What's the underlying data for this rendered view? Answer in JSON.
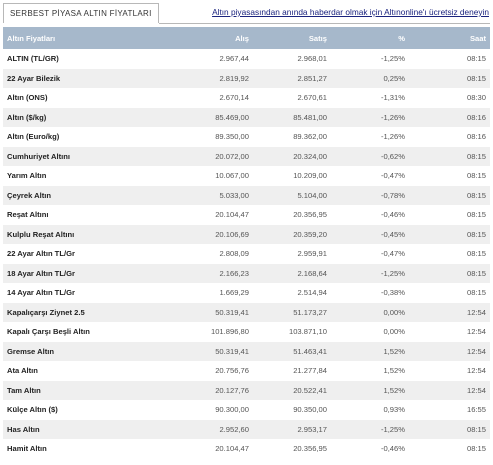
{
  "tab": {
    "title": "SERBEST PİYASA ALTIN FİYATLARI"
  },
  "promo": {
    "link": "Altın piyasasından anında haberdar olmak için Altınonline'ı ücretsiz deneyin"
  },
  "table": {
    "columns": [
      "Altın Fiyatları",
      "Alış",
      "Satış",
      "%",
      "Saat"
    ],
    "rows": [
      [
        "ALTIN (TL/GR)",
        "2.967,44",
        "2.968,01",
        "-1,25%",
        "08:15"
      ],
      [
        "22 Ayar Bilezik",
        "2.819,92",
        "2.851,27",
        "0,25%",
        "08:15"
      ],
      [
        "Altın (ONS)",
        "2.670,14",
        "2.670,61",
        "-1,31%",
        "08:30"
      ],
      [
        "Altın ($/kg)",
        "85.469,00",
        "85.481,00",
        "-1,26%",
        "08:16"
      ],
      [
        "Altın (Euro/kg)",
        "89.350,00",
        "89.362,00",
        "-1,26%",
        "08:16"
      ],
      [
        "Cumhuriyet Altını",
        "20.072,00",
        "20.324,00",
        "-0,62%",
        "08:15"
      ],
      [
        "Yarım Altın",
        "10.067,00",
        "10.209,00",
        "-0,47%",
        "08:15"
      ],
      [
        "Çeyrek Altın",
        "5.033,00",
        "5.104,00",
        "-0,78%",
        "08:15"
      ],
      [
        "Reşat Altını",
        "20.104,47",
        "20.356,95",
        "-0,46%",
        "08:15"
      ],
      [
        "Kulplu Reşat Altını",
        "20.106,69",
        "20.359,20",
        "-0,45%",
        "08:15"
      ],
      [
        "22 Ayar Altın TL/Gr",
        "2.808,09",
        "2.959,91",
        "-0,47%",
        "08:15"
      ],
      [
        "18 Ayar Altın TL/Gr",
        "2.166,23",
        "2.168,64",
        "-1,25%",
        "08:15"
      ],
      [
        "14 Ayar Altın TL/Gr",
        "1.669,29",
        "2.514,94",
        "-0,38%",
        "08:15"
      ],
      [
        "Kapalıçarşı Ziynet 2.5",
        "50.319,41",
        "51.173,27",
        "0,00%",
        "12:54"
      ],
      [
        "Kapalı Çarşı Beşli Altın",
        "101.896,80",
        "103.871,10",
        "0,00%",
        "12:54"
      ],
      [
        "Gremse Altın",
        "50.319,41",
        "51.463,41",
        "1,52%",
        "12:54"
      ],
      [
        "Ata Altın",
        "20.756,76",
        "21.277,84",
        "1,52%",
        "12:54"
      ],
      [
        "Tam Altın",
        "20.127,76",
        "20.522,41",
        "1,52%",
        "12:54"
      ],
      [
        "Külçe Altın ($)",
        "90.300,00",
        "90.350,00",
        "0,93%",
        "16:55"
      ],
      [
        "Has Altın",
        "2.952,60",
        "2.953,17",
        "-1,25%",
        "08:15"
      ],
      [
        "Hamit Altın",
        "20.104,47",
        "20.356,95",
        "-0,46%",
        "08:15"
      ]
    ]
  }
}
